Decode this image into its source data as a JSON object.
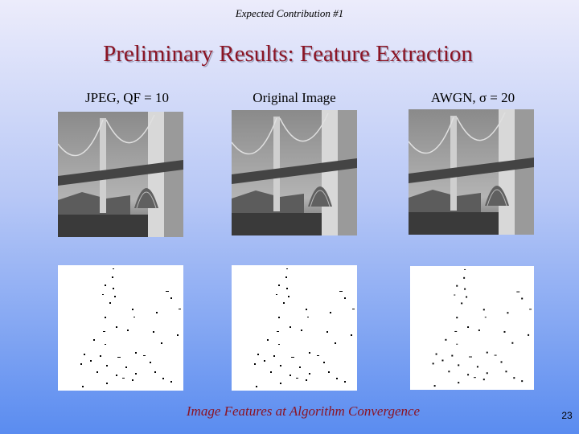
{
  "header": {
    "kicker": "Expected Contribution #1",
    "title": "Preliminary Results: Feature Extraction"
  },
  "panels": [
    {
      "label": "JPEG, QF = 10"
    },
    {
      "label": "Original Image"
    },
    {
      "label": "AWGN, σ = 20"
    }
  ],
  "caption": "Image Features at Algorithm Convergence",
  "page_number": "23"
}
